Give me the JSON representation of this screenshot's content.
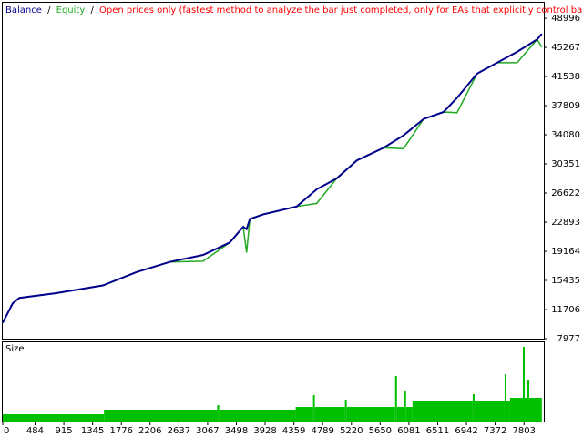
{
  "chart_data": [
    {
      "type": "line",
      "legend": {
        "separator": "/"
      },
      "subtitle": "Open prices only (fastest method to analyze the bar just completed, only for EAs that explicitly control bar opening)",
      "subtitle_color": "#ff0000",
      "x": [
        0,
        150,
        250,
        800,
        1500,
        2000,
        2500,
        3000,
        3400,
        3600,
        3650,
        3700,
        3900,
        4400,
        4700,
        5000,
        5300,
        5700,
        6000,
        6300,
        6600,
        6800,
        7100,
        7400,
        7700,
        8000,
        8070
      ],
      "series": [
        {
          "name": "Balance",
          "color": "#00008b",
          "values": [
            10000,
            12500,
            13200,
            13800,
            14800,
            16500,
            17800,
            18700,
            20300,
            22300,
            22000,
            23300,
            23900,
            24900,
            27100,
            28500,
            30800,
            32400,
            34000,
            36100,
            37000,
            38800,
            41900,
            43300,
            44700,
            46300,
            47000
          ]
        },
        {
          "name": "Equity",
          "color": "#22aa22",
          "values": [
            10000,
            12500,
            13200,
            13800,
            14800,
            16500,
            17800,
            17900,
            20300,
            22300,
            19000,
            23300,
            23900,
            24900,
            25300,
            28500,
            30800,
            32400,
            32300,
            36100,
            37000,
            36900,
            41900,
            43300,
            43300,
            46300,
            45300
          ]
        }
      ],
      "xlim": [
        0,
        8100
      ],
      "ylim": [
        7977,
        50983
      ],
      "yticks": [
        7977,
        11706,
        15435,
        19164,
        22893,
        26622,
        30351,
        34080,
        37809,
        41538,
        45267,
        48996
      ],
      "grid": false
    },
    {
      "type": "histogram",
      "title": "Size",
      "color": "#00c000",
      "bins": [
        0,
        1516,
        3210,
        3240,
        4385,
        4645,
        4672,
        5122,
        5150,
        5874,
        5902,
        6010,
        6038,
        6134,
        7035,
        7063,
        7513,
        7541,
        7595,
        7786,
        7814,
        7854,
        7882,
        8070
      ],
      "values": [
        0.8,
        1.3,
        1.8,
        1.3,
        1.6,
        2.9,
        1.6,
        2.4,
        1.6,
        5.0,
        1.6,
        3.4,
        1.6,
        2.2,
        3.0,
        2.2,
        5.2,
        2.2,
        2.6,
        8.2,
        2.6,
        4.6,
        2.6
      ],
      "xlim": [
        0,
        8100
      ],
      "ylim": [
        0,
        8.7
      ],
      "xticks": [
        0,
        484,
        915,
        1345,
        1776,
        2206,
        2637,
        3067,
        3498,
        3928,
        4359,
        4789,
        5220,
        5650,
        6081,
        6511,
        6942,
        7372,
        7803
      ]
    }
  ]
}
